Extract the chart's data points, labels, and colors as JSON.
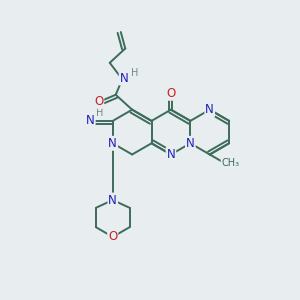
{
  "bg_color": "#e8edf0",
  "bond_color": "#3d6b5a",
  "bond_width": 1.4,
  "N_color": "#2020bb",
  "O_color": "#cc2020",
  "H_color": "#708888",
  "font_size": 8.5,
  "fig_size": [
    3.0,
    3.0
  ],
  "dpi": 100,
  "xlim": [
    0,
    10
  ],
  "ylim": [
    0,
    10
  ]
}
